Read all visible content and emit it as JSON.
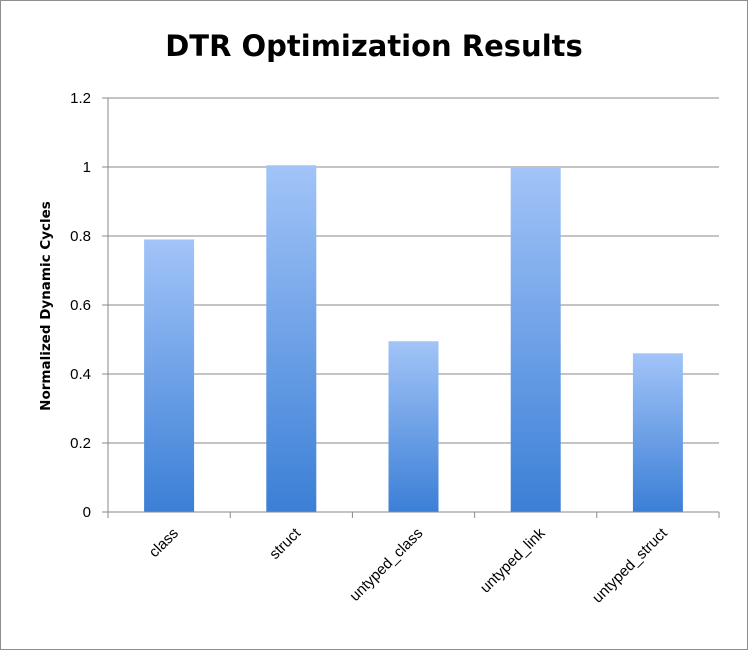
{
  "chart_data": {
    "type": "bar",
    "title": "DTR Optimization Results",
    "xlabel": "",
    "ylabel": "Normalized Dynamic Cycles",
    "categories": [
      "class",
      "struct",
      "untyped_class",
      "untyped_link",
      "untyped_struct"
    ],
    "values": [
      0.79,
      1.005,
      0.495,
      1.0,
      0.46
    ],
    "ylim": [
      0,
      1.2
    ],
    "yticks": [
      "0",
      "0.2",
      "0.4",
      "0.6",
      "0.8",
      "1",
      "1.2"
    ],
    "grid": true,
    "legend": "none",
    "bar_color_top": "#a2c4f8",
    "bar_color_bottom": "#3b7fd6"
  }
}
